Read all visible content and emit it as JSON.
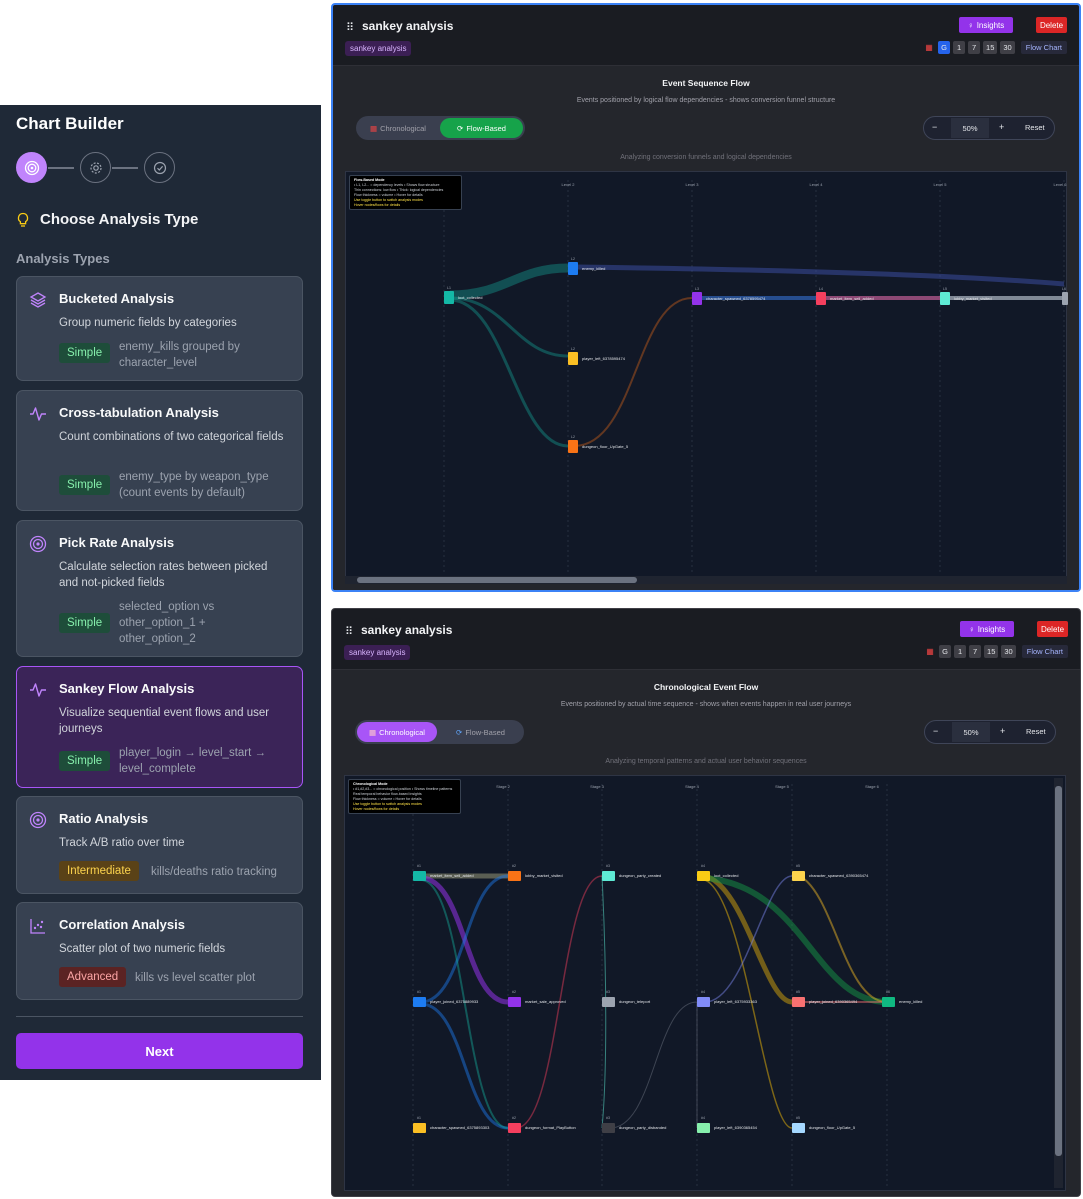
{
  "builder": {
    "title": "Chart Builder",
    "choose_heading": "Choose Analysis Type",
    "types_label": "Analysis Types",
    "next_label": "Next",
    "cards": [
      {
        "title": "Bucketed Analysis",
        "desc": "Group numeric fields by categories",
        "badge": "Simple",
        "example": "enemy_kills grouped by character_level",
        "icon": "layers-icon"
      },
      {
        "title": "Cross-tabulation Analysis",
        "desc": "Count combinations of two categorical fields",
        "badge": "Simple",
        "example": "enemy_type by weapon_type (count events by default)",
        "icon": "activity-icon"
      },
      {
        "title": "Pick Rate Analysis",
        "desc": "Calculate selection rates between picked and not-picked fields",
        "badge": "Simple",
        "example": "selected_option vs other_option_1 + other_option_2",
        "icon": "target-icon"
      },
      {
        "title": "Sankey Flow Analysis",
        "desc": "Visualize sequential event flows and user journeys",
        "badge": "Simple",
        "example": "player_login → level_start → level_complete",
        "icon": "activity-icon",
        "selected": true
      },
      {
        "title": "Ratio Analysis",
        "desc": "Track A/B ratio over time",
        "badge": "Intermediate",
        "example": "kills/deaths ratio tracking",
        "icon": "target-icon"
      },
      {
        "title": "Correlation Analysis",
        "desc": "Scatter plot of two numeric fields",
        "badge": "Advanced",
        "example": "kills vs level scatter plot",
        "icon": "scatter-icon"
      }
    ]
  },
  "panels": [
    {
      "title": "sankey analysis",
      "tag": "sankey analysis",
      "insights_label": "Insights",
      "delete_label": "Delete",
      "time_chips": [
        "G",
        "1",
        "7",
        "15",
        "30"
      ],
      "flow_chart_label": "Flow Chart",
      "view_title": "Event Sequence Flow",
      "view_subtitle": "Events positioned by logical flow dependencies - shows conversion funnel structure",
      "mode_chrono": "Chronological",
      "mode_flow": "Flow-Based",
      "active_mode": "flow",
      "zoom_minus": "−",
      "zoom_value": "50%",
      "zoom_plus": "+",
      "zoom_reset": "Reset",
      "note": "Analyzing conversion funnels and logical dependencies",
      "info_title": "Flow-Based Mode",
      "info_lines": [
        "• L1, L2... = dependency levels • Shows flow structure",
        "Thin connections: low flow • Thick: logical dependencies",
        "Flow thickness = volume • Hover for details"
      ],
      "info_hint": "Use toggle button to switch analysis modes",
      "info_hint2": "Hover nodes/flows for details",
      "levels": [
        "Level 2",
        "Level 3",
        "Level 4",
        "Level 5",
        "Level 6"
      ],
      "nodes": [
        {
          "label": "loot_collected",
          "tag": "L1"
        },
        {
          "label": "enemy_killed",
          "tag": "L2"
        },
        {
          "label": "player_left_6378595474",
          "tag": "L2"
        },
        {
          "label": "dungeon_floor_UpGate_5",
          "tag": "L2"
        },
        {
          "label": "character_spawned_6378595474",
          "tag": "L3"
        },
        {
          "label": "market_item_sell_added",
          "tag": "L4"
        },
        {
          "label": "lobby_market_visited",
          "tag": "L5"
        },
        {
          "label": "",
          "tag": "L6"
        }
      ]
    },
    {
      "title": "sankey analysis",
      "tag": "sankey analysis",
      "insights_label": "Insights",
      "delete_label": "Delete",
      "time_chips": [
        "G",
        "1",
        "7",
        "15",
        "30"
      ],
      "flow_chart_label": "Flow Chart",
      "view_title": "Chronological Event Flow",
      "view_subtitle": "Events positioned by actual time sequence - shows when events happen in real user journeys",
      "mode_chrono": "Chronological",
      "mode_flow": "Flow-Based",
      "active_mode": "chrono",
      "zoom_minus": "−",
      "zoom_value": "50%",
      "zoom_plus": "+",
      "zoom_reset": "Reset",
      "note": "Analyzing temporal patterns and actual user behavior sequences",
      "info_title": "Chronological Mode",
      "info_lines": [
        "• #1,#2,#3... = chronological position • Shows timeline patterns",
        "Real temporal behavior flow-based insights",
        "Flow thickness = volume • Hover for details"
      ],
      "info_hint": "Use toggle button to switch analysis modes",
      "info_hint2": "Hover nodes/flows for details",
      "levels": [
        "Stage 2",
        "Stage 3",
        "Stage 4",
        "Stage 5",
        "Stage 6"
      ],
      "nodes": [
        {
          "label": "market_item_sell_added",
          "tag": "#1"
        },
        {
          "label": "player_joined_6375889933",
          "tag": "#1"
        },
        {
          "label": "character_spawned_6375893303",
          "tag": "#1"
        },
        {
          "label": "lobby_market_visited",
          "tag": "#2"
        },
        {
          "label": "market_sale_approved",
          "tag": "#2"
        },
        {
          "label": "dungeon_format_PlayButton",
          "tag": "#2"
        },
        {
          "label": "dungeon_party_created",
          "tag": "#3"
        },
        {
          "label": "dungeon_teleport",
          "tag": "#3"
        },
        {
          "label": "dungeon_party_disbanded",
          "tag": "#3"
        },
        {
          "label": "loot_collected",
          "tag": "#4"
        },
        {
          "label": "player_left_6375933363",
          "tag": "#4"
        },
        {
          "label": "player_left_6390365454",
          "tag": "#4"
        },
        {
          "label": "character_spawned_6390365474",
          "tag": "#5"
        },
        {
          "label": "player_joined_6390365494",
          "tag": "#5"
        },
        {
          "label": "dungeon_floor_UpGate_5",
          "tag": "#5"
        },
        {
          "label": "enemy_killed",
          "tag": "#6"
        }
      ]
    }
  ],
  "colors": {
    "accent": "#9333ea",
    "danger": "#dc2626",
    "flow_green": "#16a34a",
    "chrono_purple": "#a855f7",
    "canvas_bg": "#111827"
  }
}
